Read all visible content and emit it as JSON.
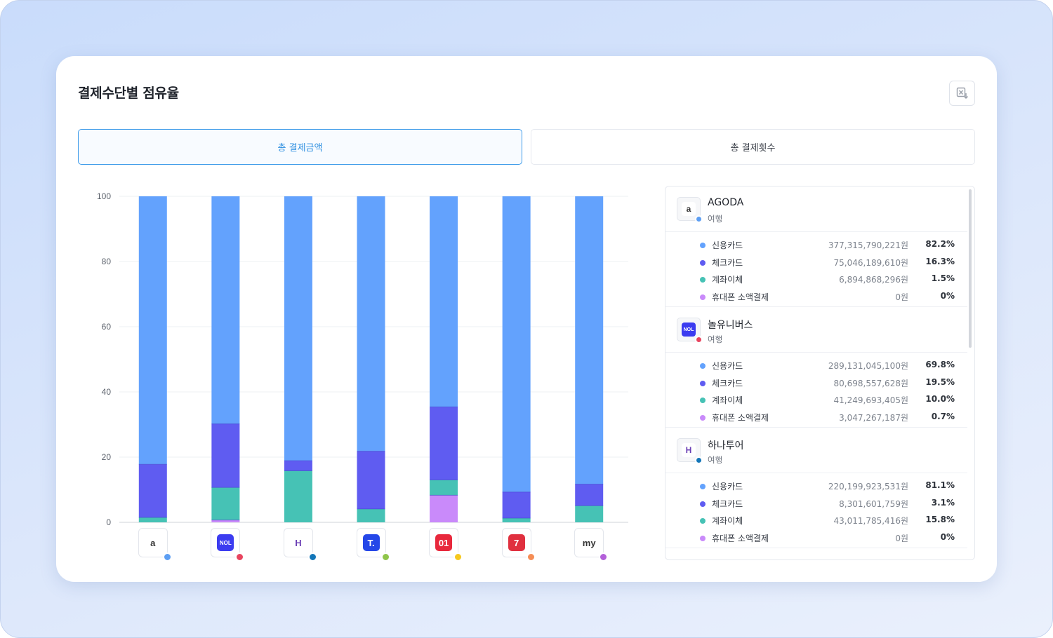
{
  "title": "결제수단별 점유율",
  "export_icon": "excel-export-icon",
  "tabs": [
    {
      "label": "총 결제금액",
      "active": true
    },
    {
      "label": "총 결제횟수",
      "active": false
    }
  ],
  "colors": {
    "credit": "#63a2fd",
    "check": "#5f5cf1",
    "transfer": "#46c2b5",
    "mobile": "#c98afa"
  },
  "merchants": [
    {
      "name": "AGODA",
      "logo_text": "a",
      "logo_bg": "#ffffff",
      "logo_fg": "#333333",
      "dot": "#5c9ef3"
    },
    {
      "name": "놀유니버스",
      "logo_text": "NOL",
      "logo_bg": "#3c3cf0",
      "logo_fg": "#ffffff",
      "dot": "#e8445e"
    },
    {
      "name": "하나투어",
      "logo_text": "H",
      "logo_bg": "#ffffff",
      "logo_fg": "#6b3fb5",
      "dot": "#1376b8"
    },
    {
      "name": "",
      "logo_text": "T.",
      "logo_bg": "#2547e8",
      "logo_fg": "#ffffff",
      "dot": "#8fc54a"
    },
    {
      "name": "",
      "logo_text": "01",
      "logo_bg": "#e8283c",
      "logo_fg": "#ffffff",
      "dot": "#f6c81d"
    },
    {
      "name": "",
      "logo_text": "7",
      "logo_bg": "#e0303f",
      "logo_fg": "#ffffff",
      "dot": "#f58d55"
    },
    {
      "name": "",
      "logo_text": "my",
      "logo_bg": "#ffffff",
      "logo_fg": "#333333",
      "dot": "#b35fd9"
    }
  ],
  "chart_data": {
    "type": "bar",
    "stacked": true,
    "categories": [
      "AGODA",
      "놀유니버스",
      "하나투어",
      "",
      "",
      "",
      ""
    ],
    "series": [
      {
        "name": "신용카드",
        "color": "#63a2fd",
        "values": [
          82.2,
          69.8,
          81.1,
          78.2,
          64.6,
          90.7,
          88.3
        ]
      },
      {
        "name": "체크카드",
        "color": "#5f5cf1",
        "values": [
          16.3,
          19.5,
          3.1,
          17.7,
          22.4,
          8.0,
          6.6
        ]
      },
      {
        "name": "계좌이체",
        "color": "#46c2b5",
        "values": [
          1.5,
          10.0,
          15.8,
          4.1,
          4.7,
          1.3,
          5.1
        ]
      },
      {
        "name": "휴대폰 소액결제",
        "color": "#c98afa",
        "values": [
          0,
          0.7,
          0,
          0,
          8.3,
          0,
          0
        ]
      }
    ],
    "yticks": [
      0,
      20,
      40,
      60,
      80,
      100
    ],
    "ylim": [
      0,
      100
    ],
    "grid": true,
    "legend": "none"
  },
  "panel": {
    "companies": [
      {
        "name": "AGODA",
        "category": "여행",
        "rows": [
          {
            "method": "신용카드",
            "amount": "377,315,790,221원",
            "pct": "82.2%"
          },
          {
            "method": "체크카드",
            "amount": "75,046,189,610원",
            "pct": "16.3%"
          },
          {
            "method": "계좌이체",
            "amount": "6,894,868,296원",
            "pct": "1.5%"
          },
          {
            "method": "휴대폰 소액결제",
            "amount": "0원",
            "pct": "0%"
          }
        ]
      },
      {
        "name": "놀유니버스",
        "category": "여행",
        "rows": [
          {
            "method": "신용카드",
            "amount": "289,131,045,100원",
            "pct": "69.8%"
          },
          {
            "method": "체크카드",
            "amount": "80,698,557,628원",
            "pct": "19.5%"
          },
          {
            "method": "계좌이체",
            "amount": "41,249,693,405원",
            "pct": "10.0%"
          },
          {
            "method": "휴대폰 소액결제",
            "amount": "3,047,267,187원",
            "pct": "0.7%"
          }
        ]
      },
      {
        "name": "하나투어",
        "category": "여행",
        "rows": [
          {
            "method": "신용카드",
            "amount": "220,199,923,531원",
            "pct": "81.1%"
          },
          {
            "method": "체크카드",
            "amount": "8,301,601,759원",
            "pct": "3.1%"
          },
          {
            "method": "계좌이체",
            "amount": "43,011,785,416원",
            "pct": "15.8%"
          },
          {
            "method": "휴대폰 소액결제",
            "amount": "0원",
            "pct": "0%"
          }
        ]
      }
    ]
  }
}
